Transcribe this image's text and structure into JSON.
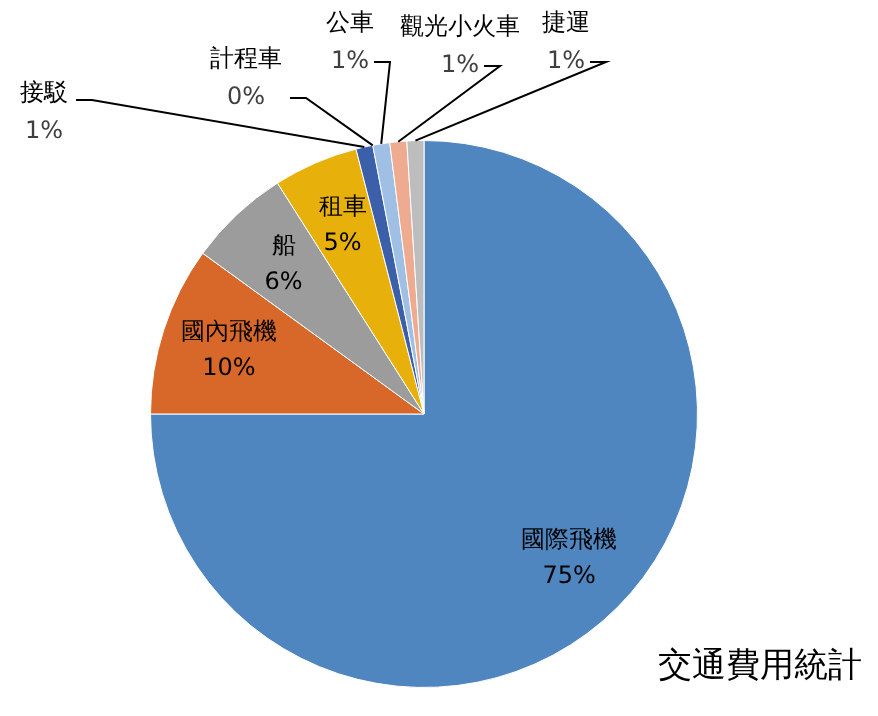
{
  "chart_data": {
    "type": "pie",
    "title": "交通費用統計",
    "categories": [
      "國際飛機",
      "國內飛機",
      "船",
      "租車",
      "接駁",
      "計程車",
      "公車",
      "觀光小火車",
      "捷運"
    ],
    "values": [
      75,
      10,
      6,
      5,
      1,
      0,
      1,
      1,
      1
    ],
    "value_labels": [
      "75%",
      "10%",
      "6%",
      "5%",
      "1%",
      "0%",
      "1%",
      "1%",
      "1%"
    ],
    "colors": [
      "#4f86c0",
      "#d8682a",
      "#9c9c9c",
      "#e8b00b",
      "#3b5fa8",
      "#6a9a4a",
      "#9fc0e4",
      "#efab90",
      "#bdbdbd"
    ],
    "legend": false
  }
}
